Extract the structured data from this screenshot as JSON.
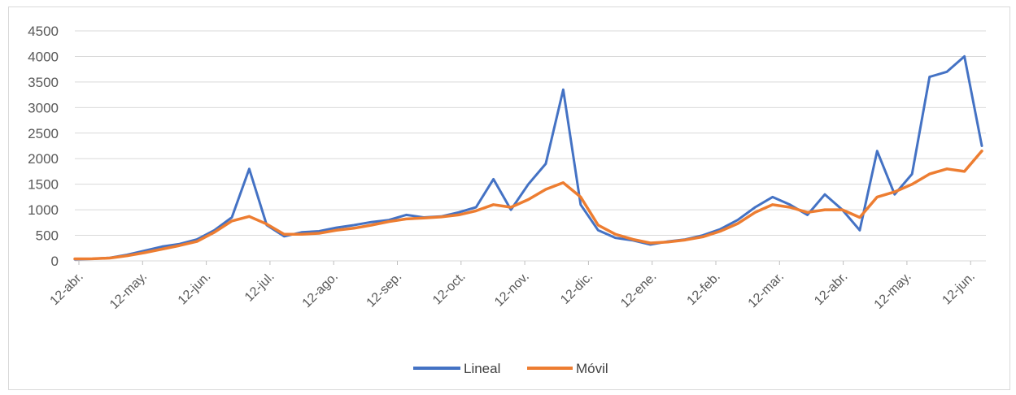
{
  "chart_data": {
    "type": "line",
    "title": "",
    "xlabel": "",
    "ylabel": "",
    "ylim": [
      0,
      4500
    ],
    "yticks": [
      0,
      500,
      1000,
      1500,
      2000,
      2500,
      3000,
      3500,
      4000,
      4500
    ],
    "grid": true,
    "legend_position": "bottom",
    "x_tick_labels": [
      "12-abr.",
      "12-may.",
      "12-jun.",
      "12-jul.",
      "12-ago.",
      "12-sep.",
      "12-oct.",
      "12-nov.",
      "12-dic.",
      "12-ene.",
      "12-feb.",
      "12-mar.",
      "12-abr.",
      "12-may.",
      "12-jun."
    ],
    "x_granularity": "monthly",
    "series": [
      {
        "name": "Lineal",
        "color": "#4472C4",
        "values": [
          30,
          40,
          60,
          120,
          200,
          280,
          330,
          420,
          600,
          850,
          1800,
          700,
          480,
          560,
          580,
          650,
          700,
          760,
          800,
          900,
          850,
          870,
          950,
          1050,
          1600,
          1000,
          1500,
          1900,
          3350,
          1100,
          600,
          450,
          400,
          320,
          380,
          420,
          500,
          620,
          800,
          1050,
          1250,
          1100,
          900,
          1300,
          1000,
          600,
          2150,
          1300,
          1700,
          3600,
          3700,
          4000,
          2250
        ]
      },
      {
        "name": "Móvil",
        "color": "#ED7D31",
        "values": [
          40,
          42,
          55,
          100,
          160,
          230,
          300,
          380,
          560,
          780,
          870,
          720,
          520,
          520,
          540,
          600,
          640,
          700,
          770,
          820,
          840,
          860,
          900,
          980,
          1100,
          1050,
          1200,
          1400,
          1530,
          1250,
          700,
          520,
          420,
          350,
          370,
          410,
          470,
          580,
          730,
          950,
          1100,
          1050,
          950,
          1000,
          1000,
          850,
          1250,
          1350,
          1500,
          1700,
          1800,
          1750,
          2150
        ]
      }
    ]
  }
}
